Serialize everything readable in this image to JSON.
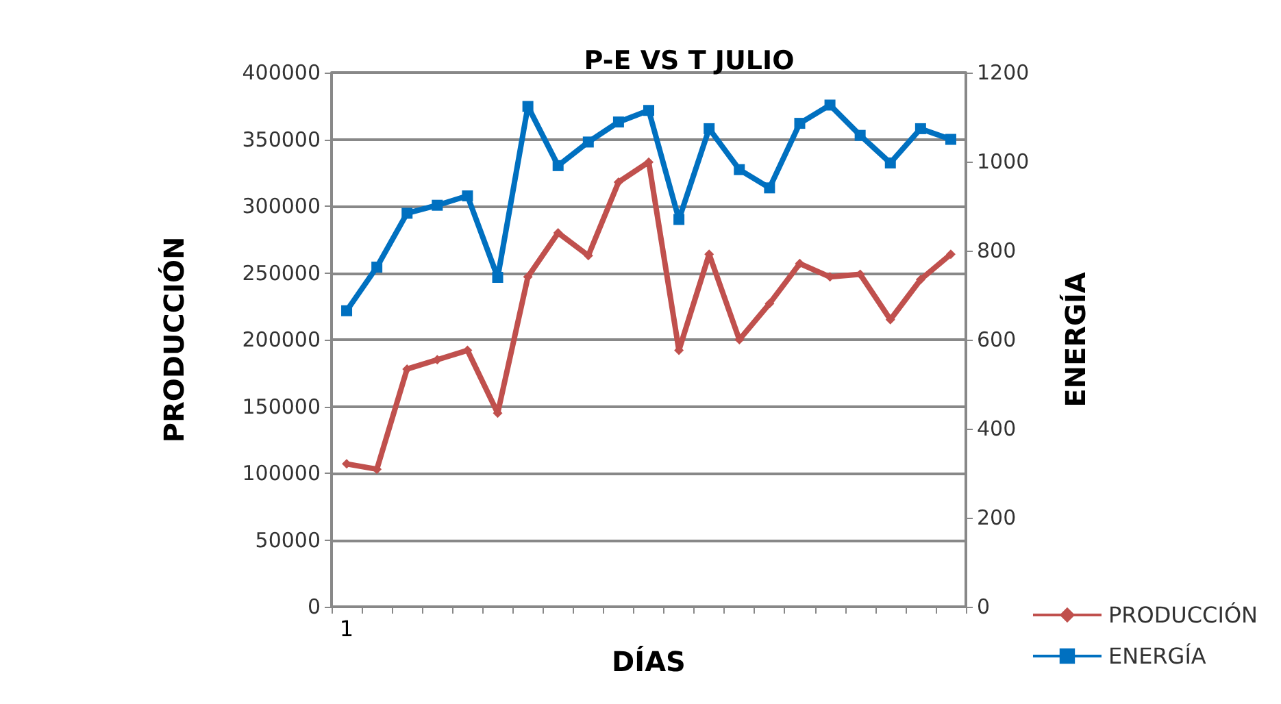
{
  "chart_data": {
    "type": "line",
    "title": "P-E VS T JULIO",
    "xlabel": "DÍAS",
    "ylabel": "PRODUCCIÓN",
    "y2label": "ENERGÍA",
    "categories": [
      "1",
      null,
      null,
      null,
      null,
      null,
      null,
      null,
      null,
      null,
      null,
      null,
      null,
      null,
      null,
      null,
      null,
      null,
      null,
      null,
      null
    ],
    "series": [
      {
        "name": "PRODUCCIÓN",
        "color": "#c0504d",
        "marker": "diamond",
        "values": [
          107000,
          103000,
          178000,
          185000,
          192000,
          145000,
          247000,
          280000,
          263000,
          318000,
          333000,
          192000,
          264000,
          200000,
          227000,
          257000,
          247000,
          249000,
          215000,
          245000,
          264000
        ]
      },
      {
        "name": "ENERGÍA",
        "color": "#0070c0",
        "marker": "square",
        "axis": "y2",
        "values": [
          665,
          763,
          884,
          902,
          923,
          740,
          1124,
          991,
          1044,
          1089,
          1115,
          870,
          1074,
          982,
          941,
          1086,
          1127,
          1059,
          997,
          1074,
          1050
        ]
      }
    ],
    "ylim": [
      0,
      400000
    ],
    "yticks": [
      0,
      50000,
      100000,
      150000,
      200000,
      250000,
      300000,
      350000,
      400000
    ],
    "y2lim": [
      0,
      1200
    ],
    "y2ticks": [
      0,
      200,
      400,
      600,
      800,
      1000,
      1200
    ],
    "grid": "y",
    "legend": "bottom right"
  }
}
